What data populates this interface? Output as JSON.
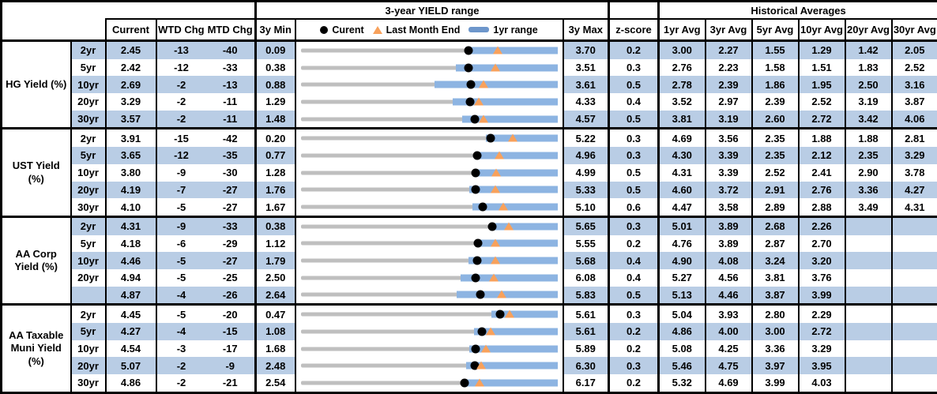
{
  "colors": {
    "stripe_blue": "#B9CDE5",
    "range_bar_blue": "#8DB4E2",
    "legend_bar_blue": "#6D96CB",
    "track_gray": "#BFBFBF",
    "marker_orange": "#F8A15B",
    "marker_black": "#000000",
    "border_black": "#000000"
  },
  "header": {
    "yield_range_title": "3-year YIELD range",
    "historical_title": "Historical Averages",
    "current": "Current",
    "wtd_chg": "WTD Chg",
    "mtd_chg": "MTD Chg",
    "min_3y": "3y Min",
    "max_3y": "3y Max",
    "z_score": "z-score",
    "avg_columns": [
      "1yr Avg",
      "3yr Avg",
      "5yr Avg",
      "10yr Avg",
      "20yr Avg",
      "30yr Avg"
    ],
    "legend": {
      "current_label": "Curent",
      "last_month_end_label": "Last Month End",
      "range_label": "1yr range"
    }
  },
  "sections": [
    {
      "label": "HG Yield (%)",
      "rows": [
        {
          "tenor": "2yr",
          "current": "2.45",
          "wtd": "-13",
          "mtd": "-40",
          "min": "0.09",
          "max": "3.70",
          "z": "0.2",
          "avgs": [
            "3.00",
            "2.27",
            "1.55",
            "1.29",
            "1.42",
            "2.05"
          ]
        },
        {
          "tenor": "5yr",
          "current": "2.42",
          "wtd": "-12",
          "mtd": "-33",
          "min": "0.38",
          "max": "3.51",
          "z": "0.3",
          "avgs": [
            "2.76",
            "2.23",
            "1.58",
            "1.51",
            "1.83",
            "2.52"
          ]
        },
        {
          "tenor": "10yr",
          "current": "2.69",
          "wtd": "-2",
          "mtd": "-13",
          "min": "0.88",
          "max": "3.61",
          "z": "0.5",
          "avgs": [
            "2.78",
            "2.39",
            "1.86",
            "1.95",
            "2.50",
            "3.16"
          ]
        },
        {
          "tenor": "20yr",
          "current": "3.29",
          "wtd": "-2",
          "mtd": "-11",
          "min": "1.29",
          "max": "4.33",
          "z": "0.4",
          "avgs": [
            "3.52",
            "2.97",
            "2.39",
            "2.52",
            "3.19",
            "3.87"
          ]
        },
        {
          "tenor": "30yr",
          "current": "3.57",
          "wtd": "-2",
          "mtd": "-11",
          "min": "1.48",
          "max": "4.57",
          "z": "0.5",
          "avgs": [
            "3.81",
            "3.19",
            "2.60",
            "2.72",
            "3.42",
            "4.06"
          ]
        }
      ]
    },
    {
      "label": "UST Yield (%)",
      "rows": [
        {
          "tenor": "2yr",
          "current": "3.91",
          "wtd": "-15",
          "mtd": "-42",
          "min": "0.20",
          "max": "5.22",
          "z": "0.3",
          "avgs": [
            "4.69",
            "3.56",
            "2.35",
            "1.88",
            "1.88",
            "2.81"
          ]
        },
        {
          "tenor": "5yr",
          "current": "3.65",
          "wtd": "-12",
          "mtd": "-35",
          "min": "0.77",
          "max": "4.96",
          "z": "0.3",
          "avgs": [
            "4.30",
            "3.39",
            "2.35",
            "2.12",
            "2.35",
            "3.29"
          ]
        },
        {
          "tenor": "10yr",
          "current": "3.80",
          "wtd": "-9",
          "mtd": "-30",
          "min": "1.28",
          "max": "4.99",
          "z": "0.5",
          "avgs": [
            "4.31",
            "3.39",
            "2.52",
            "2.41",
            "2.90",
            "3.78"
          ]
        },
        {
          "tenor": "20yr",
          "current": "4.19",
          "wtd": "-7",
          "mtd": "-27",
          "min": "1.76",
          "max": "5.33",
          "z": "0.5",
          "avgs": [
            "4.60",
            "3.72",
            "2.91",
            "2.76",
            "3.36",
            "4.27"
          ]
        },
        {
          "tenor": "30yr",
          "current": "4.10",
          "wtd": "-5",
          "mtd": "-27",
          "min": "1.67",
          "max": "5.10",
          "z": "0.6",
          "avgs": [
            "4.47",
            "3.58",
            "2.89",
            "2.88",
            "3.49",
            "4.31"
          ]
        }
      ]
    },
    {
      "label": "AA Corp Yield (%)",
      "rows": [
        {
          "tenor": "2yr",
          "current": "4.31",
          "wtd": "-9",
          "mtd": "-33",
          "min": "0.38",
          "max": "5.65",
          "z": "0.3",
          "avgs": [
            "5.01",
            "3.89",
            "2.68",
            "2.26",
            "",
            ""
          ]
        },
        {
          "tenor": "5yr",
          "current": "4.18",
          "wtd": "-6",
          "mtd": "-29",
          "min": "1.12",
          "max": "5.55",
          "z": "0.2",
          "avgs": [
            "4.76",
            "3.89",
            "2.87",
            "2.70",
            "",
            ""
          ]
        },
        {
          "tenor": "10yr",
          "current": "4.46",
          "wtd": "-5",
          "mtd": "-27",
          "min": "1.79",
          "max": "5.68",
          "z": "0.4",
          "avgs": [
            "4.90",
            "4.08",
            "3.24",
            "3.20",
            "",
            ""
          ]
        },
        {
          "tenor": "20yr",
          "current": "4.94",
          "wtd": "-5",
          "mtd": "-25",
          "min": "2.50",
          "max": "6.08",
          "z": "0.4",
          "avgs": [
            "5.27",
            "4.56",
            "3.81",
            "3.76",
            "",
            ""
          ]
        },
        {
          "tenor": "",
          "current": "4.87",
          "wtd": "-4",
          "mtd": "-26",
          "min": "2.64",
          "max": "5.83",
          "z": "0.5",
          "avgs": [
            "5.13",
            "4.46",
            "3.87",
            "3.99",
            "",
            ""
          ]
        }
      ]
    },
    {
      "label": "AA Taxable Muni Yield (%)",
      "rows": [
        {
          "tenor": "2yr",
          "current": "4.45",
          "wtd": "-5",
          "mtd": "-20",
          "min": "0.47",
          "max": "5.61",
          "z": "0.3",
          "avgs": [
            "5.04",
            "3.93",
            "2.80",
            "2.29",
            "",
            ""
          ]
        },
        {
          "tenor": "5yr",
          "current": "4.27",
          "wtd": "-4",
          "mtd": "-15",
          "min": "1.08",
          "max": "5.61",
          "z": "0.2",
          "avgs": [
            "4.86",
            "4.00",
            "3.00",
            "2.72",
            "",
            ""
          ]
        },
        {
          "tenor": "10yr",
          "current": "4.54",
          "wtd": "-3",
          "mtd": "-17",
          "min": "1.68",
          "max": "5.89",
          "z": "0.2",
          "avgs": [
            "5.08",
            "4.25",
            "3.36",
            "3.29",
            "",
            ""
          ]
        },
        {
          "tenor": "20yr",
          "current": "5.07",
          "wtd": "-2",
          "mtd": "-9",
          "min": "2.48",
          "max": "6.30",
          "z": "0.3",
          "avgs": [
            "5.46",
            "4.75",
            "3.97",
            "3.95",
            "",
            ""
          ]
        },
        {
          "tenor": "30yr",
          "current": "4.86",
          "wtd": "-2",
          "mtd": "-21",
          "min": "2.54",
          "max": "6.17",
          "z": "0.2",
          "avgs": [
            "5.32",
            "4.69",
            "3.99",
            "4.03",
            "",
            ""
          ]
        }
      ]
    }
  ],
  "chart_data": {
    "type": "range_dot_plot",
    "title": "3-year YIELD range",
    "legend": [
      "Curent (black dot)",
      "Last Month End (orange triangle)",
      "1yr range (blue bar)"
    ],
    "x_scale": "each row spans its own 3y Min to 3y Max in yield %",
    "rows": [
      {
        "section": "HG Yield (%)",
        "tenor": "2yr",
        "min3y": 0.09,
        "max3y": 3.7,
        "range1yr_low": 2.4,
        "range1yr_high": 3.7,
        "current": 2.45,
        "last_month_end": 2.85
      },
      {
        "section": "HG Yield (%)",
        "tenor": "5yr",
        "min3y": 0.38,
        "max3y": 3.51,
        "range1yr_low": 2.27,
        "range1yr_high": 3.51,
        "current": 2.42,
        "last_month_end": 2.75
      },
      {
        "section": "HG Yield (%)",
        "tenor": "10yr",
        "min3y": 0.88,
        "max3y": 3.61,
        "range1yr_low": 2.3,
        "range1yr_high": 3.61,
        "current": 2.69,
        "last_month_end": 2.82
      },
      {
        "section": "HG Yield (%)",
        "tenor": "20yr",
        "min3y": 1.29,
        "max3y": 4.33,
        "range1yr_low": 3.09,
        "range1yr_high": 4.33,
        "current": 3.29,
        "last_month_end": 3.4
      },
      {
        "section": "HG Yield (%)",
        "tenor": "30yr",
        "min3y": 1.48,
        "max3y": 4.57,
        "range1yr_low": 3.42,
        "range1yr_high": 4.57,
        "current": 3.57,
        "last_month_end": 3.68
      },
      {
        "section": "UST Yield (%)",
        "tenor": "2yr",
        "min3y": 0.2,
        "max3y": 5.22,
        "range1yr_low": 3.82,
        "range1yr_high": 5.22,
        "current": 3.91,
        "last_month_end": 4.33
      },
      {
        "section": "UST Yield (%)",
        "tenor": "5yr",
        "min3y": 0.77,
        "max3y": 4.96,
        "range1yr_low": 3.62,
        "range1yr_high": 4.96,
        "current": 3.65,
        "last_month_end": 4.0
      },
      {
        "section": "UST Yield (%)",
        "tenor": "10yr",
        "min3y": 1.28,
        "max3y": 4.99,
        "range1yr_low": 3.78,
        "range1yr_high": 4.99,
        "current": 3.8,
        "last_month_end": 4.1
      },
      {
        "section": "UST Yield (%)",
        "tenor": "20yr",
        "min3y": 1.76,
        "max3y": 5.33,
        "range1yr_low": 4.1,
        "range1yr_high": 5.33,
        "current": 4.19,
        "last_month_end": 4.46
      },
      {
        "section": "UST Yield (%)",
        "tenor": "30yr",
        "min3y": 1.67,
        "max3y": 5.1,
        "range1yr_low": 3.96,
        "range1yr_high": 5.1,
        "current": 4.1,
        "last_month_end": 4.37
      },
      {
        "section": "AA Corp Yield (%)",
        "tenor": "2yr",
        "min3y": 0.38,
        "max3y": 5.65,
        "range1yr_low": 4.27,
        "range1yr_high": 5.65,
        "current": 4.31,
        "last_month_end": 4.64
      },
      {
        "section": "AA Corp Yield (%)",
        "tenor": "5yr",
        "min3y": 1.12,
        "max3y": 5.55,
        "range1yr_low": 4.13,
        "range1yr_high": 5.55,
        "current": 4.18,
        "last_month_end": 4.47
      },
      {
        "section": "AA Corp Yield (%)",
        "tenor": "10yr",
        "min3y": 1.79,
        "max3y": 5.68,
        "range1yr_low": 4.33,
        "range1yr_high": 5.68,
        "current": 4.46,
        "last_month_end": 4.73
      },
      {
        "section": "AA Corp Yield (%)",
        "tenor": "20yr",
        "min3y": 2.5,
        "max3y": 6.08,
        "range1yr_low": 4.73,
        "range1yr_high": 6.08,
        "current": 4.94,
        "last_month_end": 5.19
      },
      {
        "section": "AA Corp Yield (%)",
        "tenor": "",
        "min3y": 2.64,
        "max3y": 5.83,
        "range1yr_low": 4.58,
        "range1yr_high": 5.83,
        "current": 4.87,
        "last_month_end": 5.13
      },
      {
        "section": "AA Taxable Muni Yield (%)",
        "tenor": "2yr",
        "min3y": 0.47,
        "max3y": 5.61,
        "range1yr_low": 4.28,
        "range1yr_high": 5.61,
        "current": 4.45,
        "last_month_end": 4.65
      },
      {
        "section": "AA Taxable Muni Yield (%)",
        "tenor": "5yr",
        "min3y": 1.08,
        "max3y": 5.61,
        "range1yr_low": 4.14,
        "range1yr_high": 5.61,
        "current": 4.27,
        "last_month_end": 4.42
      },
      {
        "section": "AA Taxable Muni Yield (%)",
        "tenor": "10yr",
        "min3y": 1.68,
        "max3y": 5.89,
        "range1yr_low": 4.44,
        "range1yr_high": 5.89,
        "current": 4.54,
        "last_month_end": 4.71
      },
      {
        "section": "AA Taxable Muni Yield (%)",
        "tenor": "20yr",
        "min3y": 2.48,
        "max3y": 6.3,
        "range1yr_low": 4.94,
        "range1yr_high": 6.3,
        "current": 5.07,
        "last_month_end": 5.16
      },
      {
        "section": "AA Taxable Muni Yield (%)",
        "tenor": "30yr",
        "min3y": 2.54,
        "max3y": 6.17,
        "range1yr_low": 4.82,
        "range1yr_high": 6.17,
        "current": 4.86,
        "last_month_end": 5.07
      }
    ]
  }
}
